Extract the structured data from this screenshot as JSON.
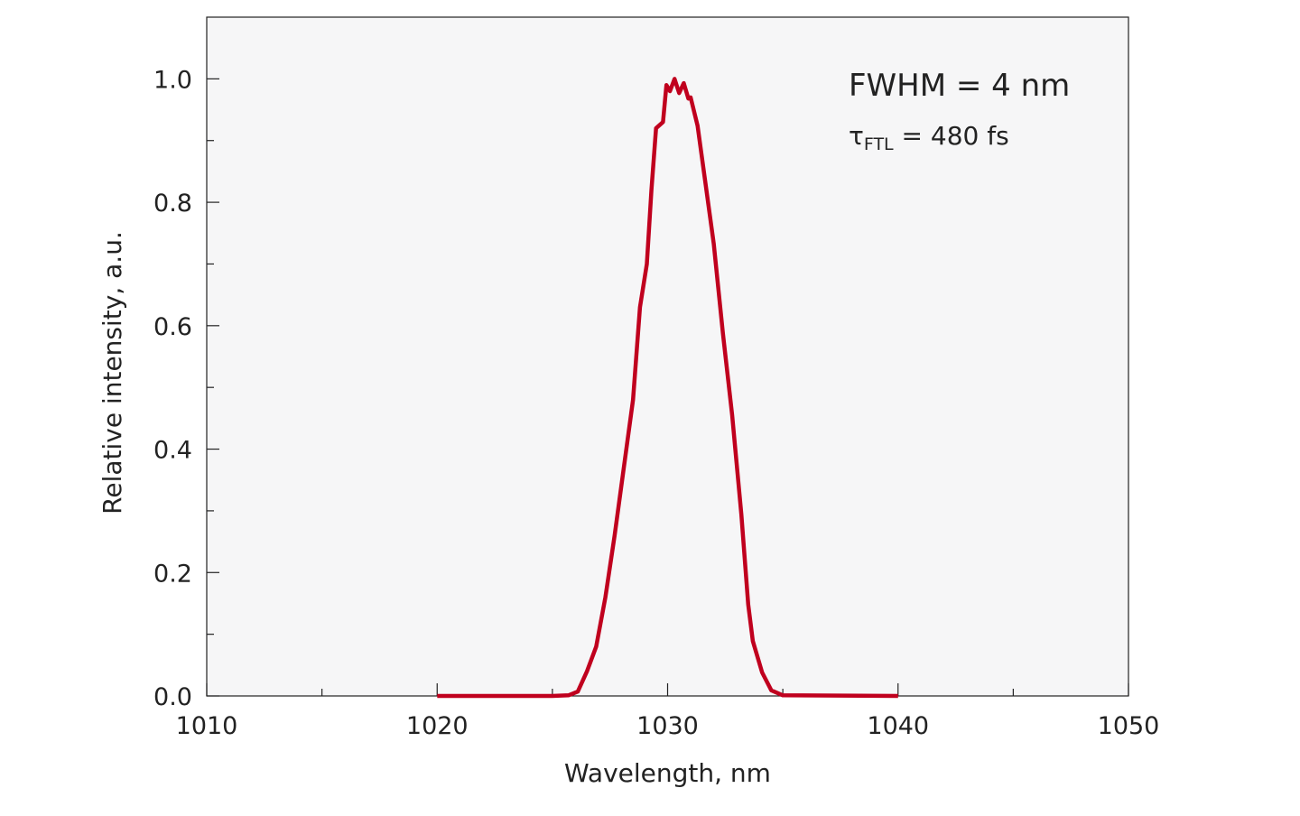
{
  "chart_data": {
    "type": "line",
    "title": "",
    "xlabel": "Wavelength, nm",
    "ylabel": "Relative intensity, a.u.",
    "xlim": [
      1010,
      1050
    ],
    "ylim": [
      0,
      1.1
    ],
    "xticks": [
      1010,
      1020,
      1030,
      1040,
      1050
    ],
    "xtick_labels": [
      "1010",
      "1020",
      "1030",
      "1040",
      "1050"
    ],
    "xminor_ticks": [
      1015,
      1025,
      1035,
      1045
    ],
    "yticks": [
      0,
      0.2,
      0.4,
      0.6,
      0.8,
      1.0
    ],
    "ytick_labels": [
      "0.0",
      "0.2",
      "0.4",
      "0.6",
      "0.8",
      "1.0"
    ],
    "yminor_ticks": [
      0.1,
      0.3,
      0.5,
      0.7,
      0.9
    ],
    "grid": false,
    "background_color": "#f6f6f7",
    "annotations": {
      "fwhm": "FWHM = 4 nm",
      "tau_symbol": "τ",
      "tau_sub": "FTL",
      "tau_value": " = 480 fs"
    },
    "series": [
      {
        "color": "#c0001e",
        "x": [
          1020,
          1025,
          1025.7,
          1026.1,
          1026.5,
          1026.9,
          1027.3,
          1027.7,
          1028.1,
          1028.5,
          1028.8,
          1029.1,
          1029.3,
          1029.5,
          1029.8,
          1029.95,
          1030.1,
          1030.3,
          1030.5,
          1030.7,
          1030.9,
          1031.0,
          1031.3,
          1031.6,
          1032.0,
          1032.4,
          1032.8,
          1033.2,
          1033.5,
          1033.7,
          1034.1,
          1034.5,
          1035.0,
          1040
        ],
        "y": [
          0,
          0,
          0.001,
          0.007,
          0.04,
          0.08,
          0.16,
          0.26,
          0.37,
          0.48,
          0.63,
          0.7,
          0.82,
          0.92,
          0.93,
          0.99,
          0.98,
          1.0,
          0.977,
          0.993,
          0.968,
          0.97,
          0.924,
          0.843,
          0.733,
          0.587,
          0.455,
          0.294,
          0.148,
          0.089,
          0.038,
          0.009,
          0.001,
          0
        ]
      }
    ]
  }
}
